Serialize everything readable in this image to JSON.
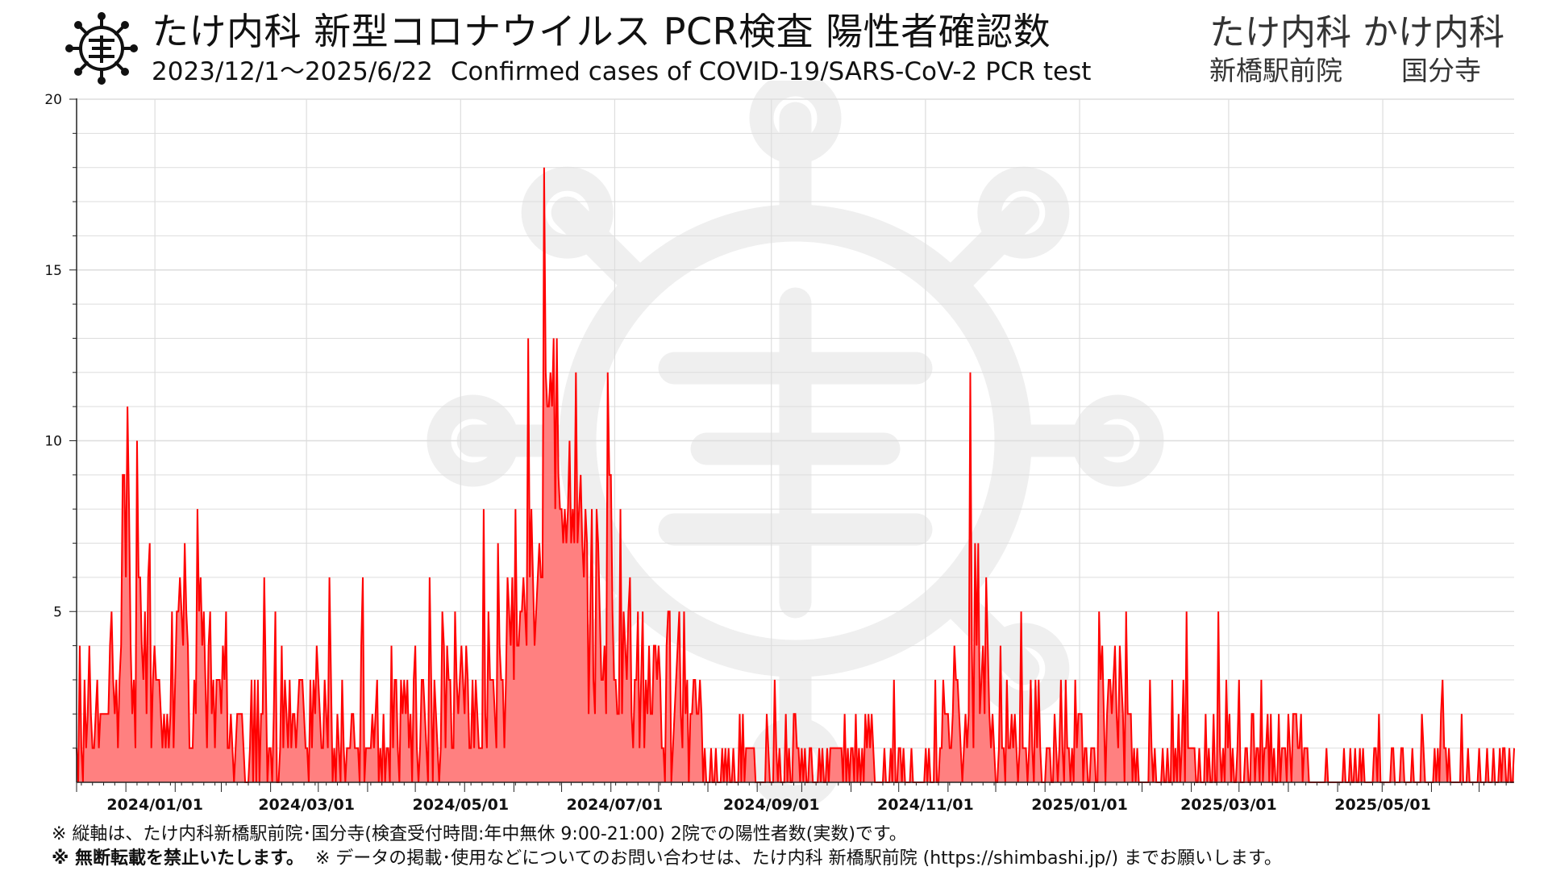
{
  "header": {
    "logo_name": "take-clinic-virus-logo",
    "title": "たけ内科 新型コロナウイルス PCR検査 陽性者確認数",
    "subtitle_dates": "2023/12/1～2025/6/22",
    "subtitle_en": "Confirmed cases of COVID-19/SARS-CoV-2 PCR test",
    "clinics": "たけ内科 かけ内科",
    "clinic_loc_1": "新橋駅前院",
    "clinic_loc_2": "国分寺"
  },
  "footer": {
    "note1": "※ 縦軸は、たけ内科新橋駅前院･国分寺(検査受付時間:年中無休 9:00-21:00) 2院での陽性者数(実数)です。",
    "note2_bold": "※ 無断転載を禁止いたします。",
    "note2_rest": "※ データの掲載･使用などについてのお問い合わせは、たけ内科 新橋駅前院 (https://shimbashi.jp/) までお願いします。"
  },
  "colors": {
    "line": "#ff0000",
    "fill": "#ff8080",
    "grid": "#dddddd",
    "watermark": "#efefef"
  },
  "chart_data": {
    "type": "area",
    "title": "たけ内科 新型コロナウイルス PCR検査 陽性者確認数",
    "xlabel": "",
    "ylabel": "",
    "x_start": "2023-12-01",
    "x_end": "2025-06-22",
    "ylim": [
      0,
      20
    ],
    "yticks": [
      5,
      10,
      15,
      20
    ],
    "ytick_labels": [
      "5",
      "10",
      "15",
      "20"
    ],
    "xticks": [
      "2024-01-01",
      "2024-03-01",
      "2024-05-01",
      "2024-07-01",
      "2024-09-01",
      "2024-11-01",
      "2025-01-01",
      "2025-03-01",
      "2025-05-01"
    ],
    "xtick_labels": [
      "2024/01/01",
      "2024/03/01",
      "2024/05/01",
      "2024/07/01",
      "2024/09/01",
      "2024/11/01",
      "2025/01/01",
      "2025/03/01",
      "2025/05/01"
    ],
    "grid": true,
    "legend": "none",
    "series": [
      {
        "values": [
          1,
          0,
          4,
          1,
          0,
          3,
          1,
          2,
          4,
          2,
          1,
          1,
          2,
          3,
          1,
          2,
          2,
          2,
          2,
          2,
          2,
          4,
          5,
          3,
          2,
          3,
          1,
          3,
          4,
          9,
          9,
          6,
          11,
          8,
          4,
          2,
          3,
          1,
          10,
          6,
          6,
          4,
          3,
          5,
          2,
          6,
          7,
          1,
          3,
          4,
          3,
          3,
          3,
          2,
          1,
          2,
          1,
          2,
          1,
          2,
          5,
          1,
          3,
          5,
          5,
          6,
          5,
          4,
          7,
          5,
          4,
          1,
          1,
          1,
          3,
          2,
          8,
          5,
          6,
          4,
          5,
          3,
          1,
          4,
          5,
          2,
          3,
          1,
          3,
          3,
          3,
          2,
          4,
          3,
          5,
          1,
          1,
          2,
          1,
          0,
          1,
          2,
          2,
          2,
          2,
          1,
          0,
          0,
          0,
          1,
          3,
          0,
          3,
          0,
          3,
          0,
          2,
          2,
          6,
          3,
          0,
          1,
          1,
          0,
          2,
          5,
          0,
          0,
          1,
          4,
          1,
          3,
          2,
          1,
          3,
          1,
          2,
          2,
          1,
          2,
          3,
          3,
          3,
          2,
          1,
          1,
          0,
          3,
          1,
          3,
          2,
          4,
          3,
          2,
          1,
          1,
          3,
          2,
          1,
          6,
          3,
          0,
          1,
          0,
          2,
          1,
          0,
          3,
          1,
          0,
          1,
          1,
          1,
          2,
          2,
          1,
          1,
          1,
          0,
          4,
          6,
          0,
          1,
          1,
          1,
          1,
          2,
          1,
          2,
          3,
          0,
          1,
          0,
          2,
          0,
          1,
          1,
          0,
          4,
          1,
          3,
          3,
          1,
          0,
          3,
          2,
          3,
          2,
          3,
          1,
          2,
          0,
          3,
          4,
          1,
          0,
          1,
          3,
          3,
          2,
          1,
          0,
          6,
          3,
          0,
          3,
          2,
          1,
          0,
          1,
          5,
          4,
          1,
          4,
          3,
          3,
          1,
          1,
          5,
          3,
          2,
          3,
          4,
          3,
          2,
          4,
          3,
          1,
          1,
          3,
          1,
          3,
          2,
          1,
          1,
          1,
          8,
          2,
          1,
          5,
          3,
          3,
          3,
          2,
          1,
          7,
          4,
          3,
          3,
          1,
          3,
          6,
          5,
          4,
          6,
          3,
          8,
          4,
          4,
          5,
          5,
          6,
          5,
          4,
          13,
          6,
          8,
          6,
          4,
          5,
          6,
          7,
          6,
          6,
          18,
          12,
          11,
          11,
          12,
          11,
          13,
          8,
          13,
          9,
          8,
          8,
          7,
          8,
          7,
          8,
          10,
          7,
          8,
          7,
          12,
          7,
          8,
          9,
          7,
          6,
          8,
          7,
          2,
          5,
          8,
          3,
          2,
          8,
          7,
          5,
          3,
          3,
          4,
          2,
          12,
          9,
          9,
          5,
          3,
          3,
          2,
          2,
          8,
          2,
          5,
          4,
          3,
          5,
          6,
          2,
          1,
          3,
          3,
          5,
          1,
          3,
          5,
          1,
          3,
          2,
          4,
          2,
          2,
          4,
          4,
          3,
          4,
          3,
          1,
          1,
          0,
          4,
          5,
          5,
          0,
          1,
          2,
          3,
          4,
          5,
          2,
          1,
          5,
          2,
          3,
          0,
          2,
          2,
          3,
          3,
          2,
          2,
          3,
          2,
          0,
          1,
          0,
          0,
          0,
          1,
          0,
          0,
          1,
          0,
          0,
          0,
          1,
          0,
          1,
          0,
          1,
          0,
          0,
          1,
          0,
          0,
          0,
          2,
          0,
          2,
          0,
          1,
          1,
          1,
          1,
          1,
          1,
          0,
          0,
          0,
          0,
          0,
          0,
          0,
          2,
          1,
          0,
          0,
          0,
          3,
          1,
          0,
          1,
          0,
          0,
          0,
          2,
          0,
          1,
          0,
          0,
          2,
          2,
          1,
          1,
          0,
          1,
          0,
          1,
          0,
          0,
          1,
          1,
          0,
          0,
          0,
          0,
          1,
          0,
          1,
          0,
          0,
          1,
          0,
          1,
          1,
          1,
          1,
          1,
          1,
          1,
          1,
          0,
          2,
          0,
          1,
          0,
          1,
          1,
          0,
          2,
          0,
          1,
          0,
          1,
          0,
          2,
          1,
          2,
          1,
          2,
          1,
          0,
          0,
          0,
          0,
          0,
          0,
          1,
          0,
          0,
          0,
          1,
          0,
          3,
          0,
          0,
          1,
          1,
          0,
          1,
          0,
          0,
          0,
          0,
          1,
          0,
          0,
          0,
          0,
          0,
          0,
          0,
          0,
          1,
          0,
          1,
          0,
          0,
          0,
          3,
          0,
          0,
          1,
          1,
          3,
          2,
          2,
          2,
          1,
          1,
          2,
          4,
          3,
          3,
          2,
          1,
          0,
          1,
          2,
          1,
          2,
          12,
          4,
          1,
          7,
          4,
          7,
          2,
          3,
          4,
          2,
          6,
          4,
          2,
          1,
          2,
          1,
          0,
          0,
          1,
          4,
          1,
          1,
          0,
          3,
          1,
          1,
          2,
          1,
          2,
          1,
          0,
          1,
          5,
          1,
          1,
          1,
          0,
          1,
          3,
          1,
          0,
          3,
          1,
          3,
          1,
          0,
          0,
          0,
          1,
          1,
          1,
          0,
          0,
          2,
          1,
          0,
          1,
          3,
          1,
          0,
          3,
          1,
          1,
          0,
          1,
          0,
          3,
          1,
          2,
          2,
          2,
          0,
          1,
          1,
          0,
          0,
          1,
          1,
          1,
          0,
          0,
          5,
          3,
          4,
          2,
          0,
          2,
          3,
          3,
          2,
          3,
          4,
          2,
          1,
          4,
          3,
          2,
          0,
          5,
          2,
          2,
          2,
          0,
          1,
          0,
          1,
          0,
          0,
          0,
          0,
          0,
          0,
          0,
          3,
          1,
          0,
          1,
          0,
          0,
          0,
          0,
          1,
          0,
          0,
          1,
          0,
          0,
          3,
          0,
          1,
          0,
          2,
          0,
          1,
          3,
          0,
          5,
          1,
          1,
          1,
          1,
          1,
          0,
          0,
          1,
          0,
          0,
          0,
          2,
          0,
          1,
          0,
          0,
          2,
          0,
          0,
          5,
          1,
          0,
          1,
          0,
          3,
          1,
          2,
          0,
          1,
          0,
          0,
          1,
          3,
          0,
          0,
          0,
          1,
          1,
          0,
          0,
          2,
          2,
          0,
          1,
          1,
          0,
          3,
          0,
          1,
          1,
          2,
          0,
          2,
          0,
          1,
          0,
          0,
          2,
          0,
          1,
          1,
          1,
          0,
          2,
          1,
          0,
          2,
          2,
          2,
          1,
          1,
          2,
          0,
          1,
          1,
          1,
          0,
          0,
          0,
          0,
          0,
          0,
          0,
          0,
          0,
          0,
          0,
          1,
          0,
          0,
          0,
          0,
          0,
          0,
          0,
          0,
          0,
          0,
          1,
          0,
          0,
          0,
          1,
          0,
          0,
          1,
          0,
          0,
          1,
          0,
          1,
          0,
          0,
          0,
          0,
          0,
          0,
          1,
          1,
          0,
          2,
          0,
          0,
          0,
          0,
          0,
          0,
          0,
          1,
          1,
          0,
          0,
          0,
          0,
          1,
          1,
          0,
          0,
          0,
          0,
          0,
          1,
          0,
          0,
          0,
          0,
          0,
          2,
          1,
          0,
          0,
          0,
          0,
          0,
          0,
          1,
          0,
          1,
          0,
          2,
          3,
          1,
          1,
          0,
          1,
          0,
          0,
          0,
          0,
          0,
          0,
          0,
          2,
          0,
          0,
          0,
          1,
          0,
          0,
          0,
          0,
          0,
          0,
          1,
          0,
          0,
          0,
          0,
          1,
          0,
          0,
          0,
          1,
          0,
          0,
          0,
          1,
          0,
          1,
          1,
          0,
          0,
          1,
          0,
          0,
          1
        ]
      }
    ]
  }
}
